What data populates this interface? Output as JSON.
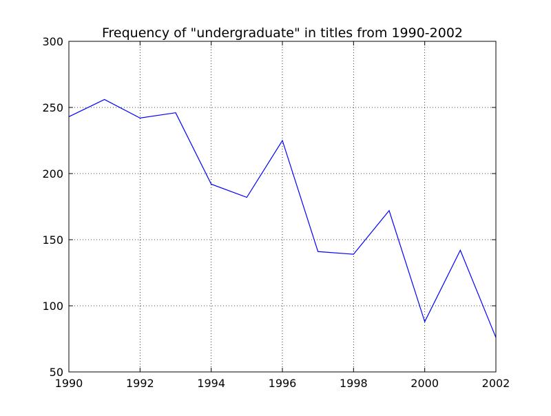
{
  "chart_data": {
    "type": "line",
    "title": "Frequency of \"undergraduate\" in titles from 1990-2002",
    "xlabel": "",
    "ylabel": "",
    "xlim": [
      1990,
      2002
    ],
    "ylim": [
      50,
      300
    ],
    "x_ticks": [
      1990,
      1992,
      1994,
      1996,
      1998,
      2000,
      2002
    ],
    "y_ticks": [
      50,
      100,
      150,
      200,
      250,
      300
    ],
    "grid": true,
    "series": [
      {
        "color": "#0000ff",
        "x": [
          1990,
          1991,
          1992,
          1993,
          1994,
          1995,
          1996,
          1997,
          1998,
          1999,
          2000,
          2001,
          2002
        ],
        "y": [
          243,
          256,
          242,
          246,
          192,
          182,
          225,
          141,
          139,
          172,
          88,
          142,
          76
        ]
      }
    ]
  }
}
